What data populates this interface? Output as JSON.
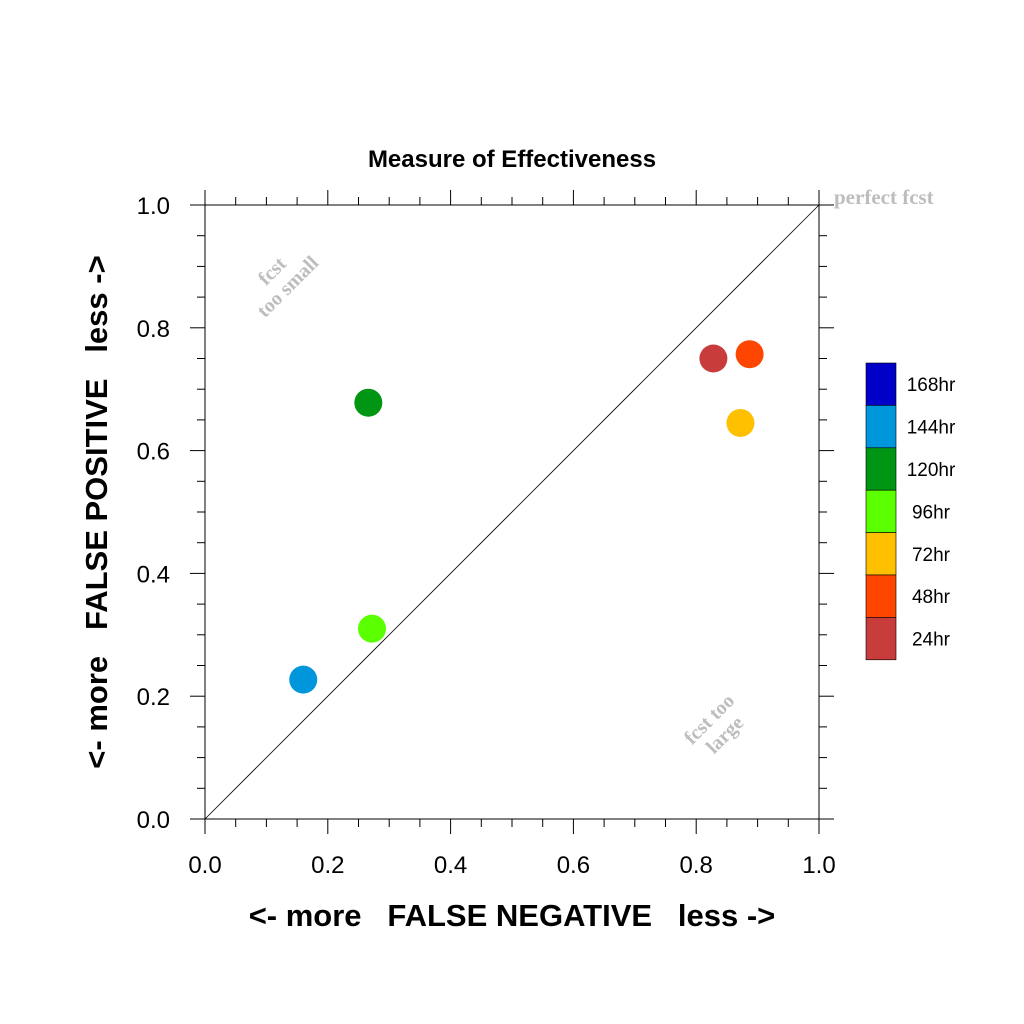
{
  "chart_data": {
    "type": "scatter",
    "title": "Measure of Effectiveness",
    "xlabel": "<- more   FALSE NEGATIVE   less ->",
    "ylabel": "<- more   FALSE POSITIVE   less ->",
    "xlim": [
      0.0,
      1.0
    ],
    "ylim": [
      0.0,
      1.0
    ],
    "x_ticks": [
      "0.0",
      "0.2",
      "0.4",
      "0.6",
      "0.8",
      "1.0"
    ],
    "y_ticks": [
      "0.0",
      "0.2",
      "0.4",
      "0.6",
      "0.8",
      "1.0"
    ],
    "grid": false,
    "legend_position": "right",
    "reference_line": {
      "from": [
        0.0,
        0.0
      ],
      "to": [
        1.0,
        1.0
      ]
    },
    "annotations": {
      "perfect": "perfect fcst",
      "too_small_line1": "fcst",
      "too_small_line2": "too small",
      "too_large_line1": "fcst too",
      "too_large_line2": "large"
    },
    "series": [
      {
        "name": "168hr",
        "color": "#0000c8",
        "points": []
      },
      {
        "name": "144hr",
        "color": "#0096dc",
        "points": [
          [
            0.16,
            0.227
          ]
        ]
      },
      {
        "name": "120hr",
        "color": "#009614",
        "points": [
          [
            0.266,
            0.678
          ]
        ]
      },
      {
        "name": "96hr",
        "color": "#5aff00",
        "points": [
          [
            0.272,
            0.31
          ]
        ]
      },
      {
        "name": "72hr",
        "color": "#ffc000",
        "points": [
          [
            0.872,
            0.645
          ]
        ]
      },
      {
        "name": "48hr",
        "color": "#ff4600",
        "points": [
          [
            0.887,
            0.757
          ]
        ]
      },
      {
        "name": "24hr",
        "color": "#c83c3c",
        "points": [
          [
            0.828,
            0.75
          ]
        ]
      }
    ]
  }
}
